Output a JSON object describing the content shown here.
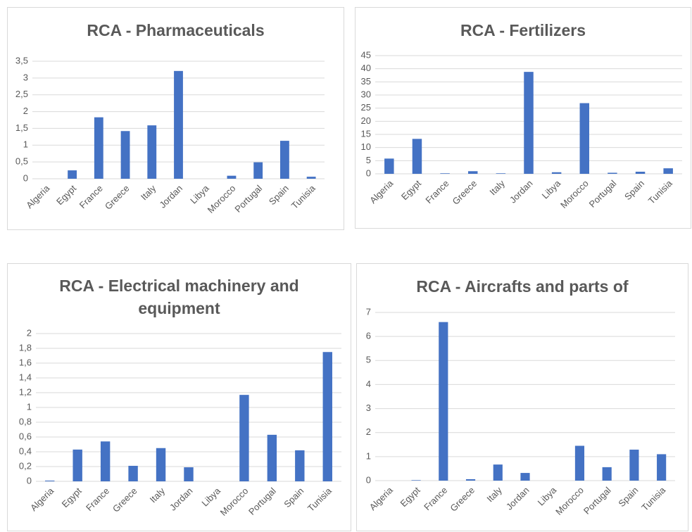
{
  "chart_data": [
    {
      "type": "bar",
      "title": "RCA - Pharmaceuticals",
      "categories": [
        "Algeria",
        "Egypt",
        "France",
        "Greece",
        "Italy",
        "Jordan",
        "Libya",
        "Morocco",
        "Portugal",
        "Spain",
        "Tunisia"
      ],
      "values": [
        0,
        0.25,
        1.83,
        1.42,
        1.59,
        3.21,
        0,
        0.09,
        0.49,
        1.13,
        0.06
      ],
      "color": "#4472c4",
      "ylim": [
        0,
        3.5
      ],
      "yticks": [
        0,
        {
          "value": 0.5,
          "label": "0,5"
        },
        1,
        {
          "value": 1.5,
          "label": "1,5"
        },
        2,
        {
          "value": 2.5,
          "label": "2,5"
        },
        3,
        {
          "value": 3.5,
          "label": "3,5"
        }
      ],
      "grid": true
    },
    {
      "type": "bar",
      "title": "RCA - Fertilizers",
      "categories": [
        "Algeria",
        "Egypt",
        "France",
        "Greece",
        "Italy",
        "Jordan",
        "Libya",
        "Morocco",
        "Portugal",
        "Spain",
        "Tunisia"
      ],
      "values": [
        5.8,
        13.3,
        0.2,
        1.0,
        0.2,
        38.8,
        0.6,
        26.9,
        0.4,
        0.8,
        2.1
      ],
      "color": "#4472c4",
      "ylim": [
        0,
        45
      ],
      "yticks": [
        0,
        5,
        10,
        15,
        20,
        25,
        30,
        35,
        40,
        45
      ],
      "grid": true
    },
    {
      "type": "bar",
      "title": "RCA - Electrical machinery and equipment",
      "categories": [
        "Algeria",
        "Egypt",
        "France",
        "Greece",
        "Italy",
        "Jordan",
        "Libya",
        "Morocco",
        "Portugal",
        "Spain",
        "Tunisia"
      ],
      "values": [
        0.01,
        0.43,
        0.54,
        0.21,
        0.45,
        0.19,
        0,
        1.17,
        0.63,
        0.42,
        1.75
      ],
      "color": "#4472c4",
      "ylim": [
        0,
        2
      ],
      "yticks": [
        0,
        {
          "value": 0.2,
          "label": "0,2"
        },
        {
          "value": 0.4,
          "label": "0,4"
        },
        {
          "value": 0.6,
          "label": "0,6"
        },
        {
          "value": 0.8,
          "label": "0,8"
        },
        1,
        {
          "value": 1.2,
          "label": "1,2"
        },
        {
          "value": 1.4,
          "label": "1,4"
        },
        {
          "value": 1.6,
          "label": "1,6"
        },
        {
          "value": 1.8,
          "label": "1,8"
        },
        2
      ],
      "grid": true
    },
    {
      "type": "bar",
      "title": "RCA - Aircrafts and parts of",
      "categories": [
        "Algeria",
        "Egypt",
        "France",
        "Greece",
        "Italy",
        "Jordan",
        "Libya",
        "Morocco",
        "Portugal",
        "Spain",
        "Tunisia"
      ],
      "values": [
        0,
        0.02,
        6.6,
        0.06,
        0.67,
        0.32,
        0,
        1.45,
        0.56,
        1.29,
        1.1
      ],
      "color": "#4472c4",
      "ylim": [
        0,
        7
      ],
      "yticks": [
        0,
        1,
        2,
        3,
        4,
        5,
        6,
        7
      ],
      "grid": true
    }
  ]
}
